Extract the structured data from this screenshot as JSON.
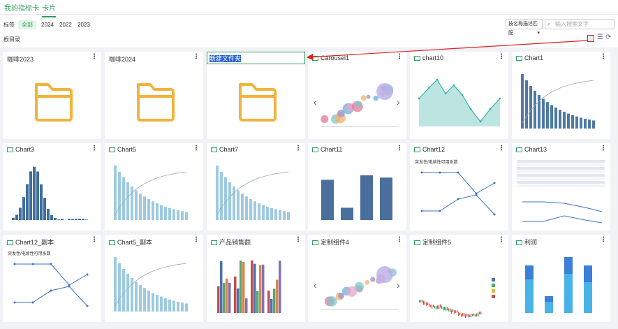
{
  "tabs": [
    {
      "label": "我的指标卡"
    },
    {
      "label": "卡片",
      "active": true
    }
  ],
  "filters": {
    "label": "标签",
    "tags": [
      {
        "label": "全部",
        "active": true
      },
      {
        "label": "2024"
      },
      {
        "label": "2022"
      },
      {
        "label": "2023"
      }
    ]
  },
  "match_select": "按名称描述匹配",
  "search_placeholder": "输入搜索文字",
  "breadcrumb": "根目录",
  "cards": [
    {
      "title": "咖啡2023",
      "type": "folder"
    },
    {
      "title": "咖啡2024",
      "type": "folder"
    },
    {
      "title": "新建文件夹",
      "type": "folder",
      "editing": true
    },
    {
      "title": "Carousel1",
      "type": "chart"
    },
    {
      "title": "chart10",
      "type": "chart"
    },
    {
      "title": "Chart1",
      "type": "chart"
    },
    {
      "title": "Chart3",
      "type": "chart"
    },
    {
      "title": "Chart5",
      "type": "chart"
    },
    {
      "title": "Chart7",
      "type": "chart"
    },
    {
      "title": "Chart11",
      "type": "chart"
    },
    {
      "title": "Chart12",
      "type": "chart",
      "subtitle": "突发性/电续性可用系数"
    },
    {
      "title": "Chart13",
      "type": "chart"
    },
    {
      "title": "Chart12_副本",
      "type": "chart",
      "subtitle": "突发性/电续性可用系数"
    },
    {
      "title": "Chart5_副本",
      "type": "chart"
    },
    {
      "title": "产品销售额",
      "type": "chart"
    },
    {
      "title": "定制组件4",
      "type": "chart"
    },
    {
      "title": "定制组件5",
      "type": "chart"
    },
    {
      "title": "利润",
      "type": "chart"
    }
  ]
}
